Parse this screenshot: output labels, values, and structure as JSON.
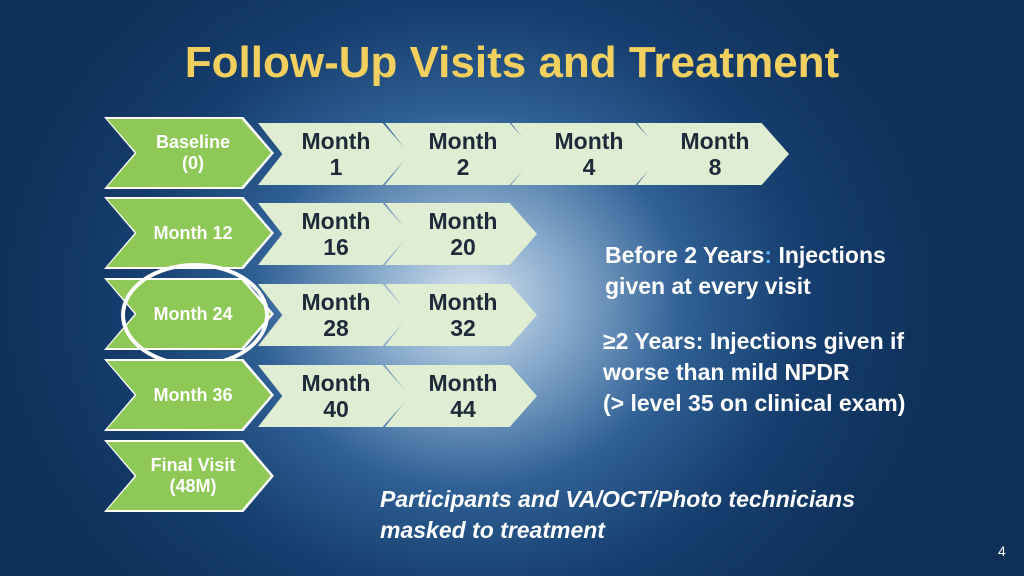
{
  "title": "Follow-Up Visits and Treatment",
  "rows": [
    {
      "main": [
        "Baseline",
        "(0)"
      ],
      "visits": [
        [
          "Month",
          "1"
        ],
        [
          "Month",
          "2"
        ],
        [
          "Month",
          "4"
        ],
        [
          "Month",
          "8"
        ]
      ]
    },
    {
      "main": [
        "Month 12"
      ],
      "visits": [
        [
          "Month",
          "16"
        ],
        [
          "Month",
          "20"
        ]
      ]
    },
    {
      "main": [
        "Month 24"
      ],
      "visits": [
        [
          "Month",
          "28"
        ],
        [
          "Month",
          "32"
        ]
      ]
    },
    {
      "main": [
        "Month 36"
      ],
      "visits": [
        [
          "Month",
          "40"
        ],
        [
          "Month",
          "44"
        ]
      ]
    },
    {
      "main": [
        "Final Visit",
        "(48M)"
      ],
      "visits": []
    }
  ],
  "note_before": {
    "label": "Before 2 Years",
    "sep": ":",
    "rest_line1": " Injections",
    "line2": "given at every visit"
  },
  "note_after": {
    "line1": "≥2 Years: Injections given if",
    "line2": "worse than mild NPDR",
    "line3": "(> level 35 on clinical exam)"
  },
  "masked": {
    "line1": "Participants and VA/OCT/Photo technicians",
    "line2": "masked to treatment"
  },
  "page_number": "4",
  "colors": {
    "title": "#f2d060",
    "main_chevron": "#8ec957",
    "visit_chevron": "#dfeed2",
    "accent": "#5ab0ff"
  }
}
